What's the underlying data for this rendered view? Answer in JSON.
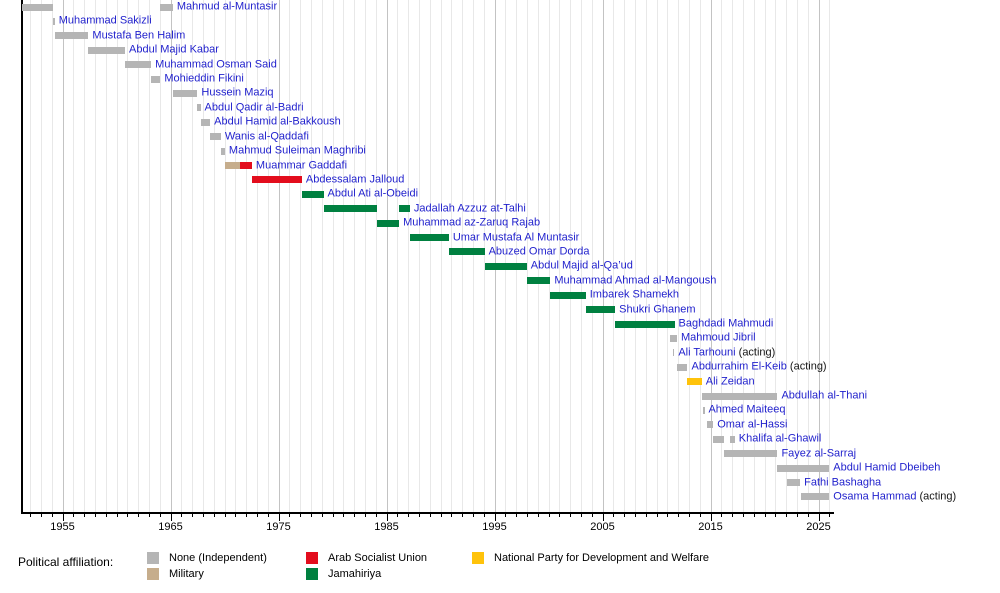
{
  "chart_data": {
    "type": "timeline",
    "title": "",
    "x_axis": {
      "tick_years": [
        1955,
        1965,
        1975,
        1985,
        1995,
        2005,
        2015,
        2025
      ],
      "minor_step": 1,
      "range_start": 1951.21,
      "range_end": 2026.4,
      "grid": "on"
    },
    "legend": {
      "title": "Political affiliation:",
      "items": [
        {
          "label": "None (Independent)",
          "party": "none"
        },
        {
          "label": "Military",
          "party": "military"
        },
        {
          "label": "Arab Socialist Union",
          "party": "asu"
        },
        {
          "label": "Jamahiriya",
          "party": "jamahiriya"
        },
        {
          "label": "National Party for Development and Welfare",
          "party": "npdw"
        }
      ]
    },
    "parties": {
      "none": "#b5b5b5",
      "military": "#c6ad8c",
      "asu": "#e30d1d",
      "jamahiriya": "#008040",
      "npdw": "#ffc30b"
    },
    "people": [
      {
        "name": "Mahmud al-Muntasir",
        "suffix": "",
        "segments": [
          {
            "from": 1951.21,
            "to": 1954.13,
            "party": "none"
          },
          {
            "from": 1964.06,
            "to": 1965.22,
            "party": "none"
          }
        ]
      },
      {
        "name": "Muhammad Sakizli",
        "suffix": "",
        "segments": [
          {
            "from": 1954.13,
            "to": 1954.28,
            "party": "none"
          }
        ]
      },
      {
        "name": "Mustafa Ben Halim",
        "suffix": "",
        "segments": [
          {
            "from": 1954.28,
            "to": 1957.4,
            "party": "none"
          }
        ]
      },
      {
        "name": "Abdul Majid Kabar",
        "suffix": "",
        "segments": [
          {
            "from": 1957.4,
            "to": 1960.79,
            "party": "none"
          }
        ]
      },
      {
        "name": "Muhammad Osman Said",
        "suffix": "",
        "segments": [
          {
            "from": 1960.79,
            "to": 1963.21,
            "party": "none"
          }
        ]
      },
      {
        "name": "Mohieddin Fikini",
        "suffix": "",
        "segments": [
          {
            "from": 1963.21,
            "to": 1964.06,
            "party": "none"
          }
        ]
      },
      {
        "name": "Hussein Maziq",
        "suffix": "",
        "segments": [
          {
            "from": 1965.22,
            "to": 1967.49,
            "party": "none"
          }
        ]
      },
      {
        "name": "Abdul Qadir al-Badri",
        "suffix": "",
        "segments": [
          {
            "from": 1967.49,
            "to": 1967.78,
            "party": "none"
          }
        ]
      },
      {
        "name": "Abdul Hamid al-Bakkoush",
        "suffix": "",
        "segments": [
          {
            "from": 1967.78,
            "to": 1968.67,
            "party": "none"
          }
        ]
      },
      {
        "name": "Wanis al-Qaddafi",
        "suffix": "",
        "segments": [
          {
            "from": 1968.67,
            "to": 1969.67,
            "party": "none"
          }
        ]
      },
      {
        "name": "Mahmud Suleiman Maghribi",
        "suffix": "",
        "segments": [
          {
            "from": 1969.69,
            "to": 1970.04,
            "party": "none"
          }
        ]
      },
      {
        "name": "Muammar Gaddafi",
        "suffix": "",
        "segments": [
          {
            "from": 1970.04,
            "to": 1971.45,
            "party": "military"
          },
          {
            "from": 1971.45,
            "to": 1972.54,
            "party": "asu"
          }
        ]
      },
      {
        "name": "Abdessalam Jalloud",
        "suffix": "",
        "segments": [
          {
            "from": 1972.54,
            "to": 1977.17,
            "party": "asu"
          }
        ]
      },
      {
        "name": "Abdul Ati al-Obeidi",
        "suffix": "",
        "segments": [
          {
            "from": 1977.17,
            "to": 1979.17,
            "party": "jamahiriya"
          }
        ]
      },
      {
        "name": "Jadallah Azzuz at-Talhi",
        "suffix": "",
        "segments": [
          {
            "from": 1979.17,
            "to": 1984.13,
            "party": "jamahiriya"
          },
          {
            "from": 1986.17,
            "to": 1987.17,
            "party": "jamahiriya"
          }
        ]
      },
      {
        "name": "Muhammad az-Zaruq Rajab",
        "suffix": "",
        "segments": [
          {
            "from": 1984.13,
            "to": 1986.17,
            "party": "jamahiriya"
          }
        ]
      },
      {
        "name": "Umar Mustafa Al Muntasir",
        "suffix": "",
        "segments": [
          {
            "from": 1987.17,
            "to": 1990.77,
            "party": "jamahiriya"
          }
        ]
      },
      {
        "name": "Abuzed Omar Dorda",
        "suffix": "",
        "segments": [
          {
            "from": 1990.77,
            "to": 1994.08,
            "party": "jamahiriya"
          }
        ]
      },
      {
        "name": "Abdul Majid al-Qa’ud",
        "suffix": "",
        "segments": [
          {
            "from": 1994.08,
            "to": 1997.99,
            "party": "jamahiriya"
          }
        ]
      },
      {
        "name": "Muhammad Ahmad al-Mangoush",
        "suffix": "",
        "segments": [
          {
            "from": 1997.99,
            "to": 2000.17,
            "party": "jamahiriya"
          }
        ]
      },
      {
        "name": "Imbarek Shamekh",
        "suffix": "",
        "segments": [
          {
            "from": 2000.17,
            "to": 2003.45,
            "party": "jamahiriya"
          }
        ]
      },
      {
        "name": "Shukri Ghanem",
        "suffix": "",
        "segments": [
          {
            "from": 2003.45,
            "to": 2006.17,
            "party": "jamahiriya"
          }
        ]
      },
      {
        "name": "Baghdadi Mahmudi",
        "suffix": "",
        "segments": [
          {
            "from": 2006.17,
            "to": 2011.67,
            "party": "jamahiriya"
          }
        ]
      },
      {
        "name": "Mahmoud Jibril",
        "suffix": "",
        "segments": [
          {
            "from": 2011.22,
            "to": 2011.9,
            "party": "none"
          }
        ]
      },
      {
        "name": "Ali Tarhouni",
        "suffix": "(acting)",
        "segments": [
          {
            "from": 2011.5,
            "to": 2011.65,
            "party": "none"
          }
        ]
      },
      {
        "name": "Abdurrahim El-Keib",
        "suffix": "(acting)",
        "segments": [
          {
            "from": 2011.9,
            "to": 2012.87,
            "party": "none"
          }
        ]
      },
      {
        "name": "Ali Zeidan",
        "suffix": "",
        "segments": [
          {
            "from": 2012.87,
            "to": 2014.19,
            "party": "npdw"
          }
        ]
      },
      {
        "name": "Abdullah al-Thani",
        "suffix": "",
        "segments": [
          {
            "from": 2014.19,
            "to": 2021.2,
            "party": "none"
          }
        ]
      },
      {
        "name": "Ahmed Maiteeq",
        "suffix": "",
        "segments": [
          {
            "from": 2014.34,
            "to": 2014.44,
            "party": "none"
          }
        ]
      },
      {
        "name": "Omar al-Hassi",
        "suffix": "",
        "segments": [
          {
            "from": 2014.68,
            "to": 2015.25,
            "party": "none"
          }
        ]
      },
      {
        "name": "Khalifa al-Ghawil",
        "suffix": "",
        "segments": [
          {
            "from": 2015.25,
            "to": 2016.27,
            "party": "none"
          },
          {
            "from": 2016.78,
            "to": 2017.25,
            "party": "none"
          }
        ]
      },
      {
        "name": "Fayez al-Sarraj",
        "suffix": "",
        "segments": [
          {
            "from": 2016.27,
            "to": 2021.2,
            "party": "none"
          }
        ]
      },
      {
        "name": "Abdul Hamid Dbeibeh",
        "suffix": "",
        "segments": [
          {
            "from": 2021.2,
            "to": 2026.0,
            "party": "none"
          }
        ]
      },
      {
        "name": "Fathi Bashagha",
        "suffix": "",
        "segments": [
          {
            "from": 2022.05,
            "to": 2023.3,
            "party": "none"
          }
        ]
      },
      {
        "name": "Osama Hammad",
        "suffix": "(acting)",
        "segments": [
          {
            "from": 2023.37,
            "to": 2026.0,
            "party": "none"
          }
        ]
      }
    ]
  }
}
